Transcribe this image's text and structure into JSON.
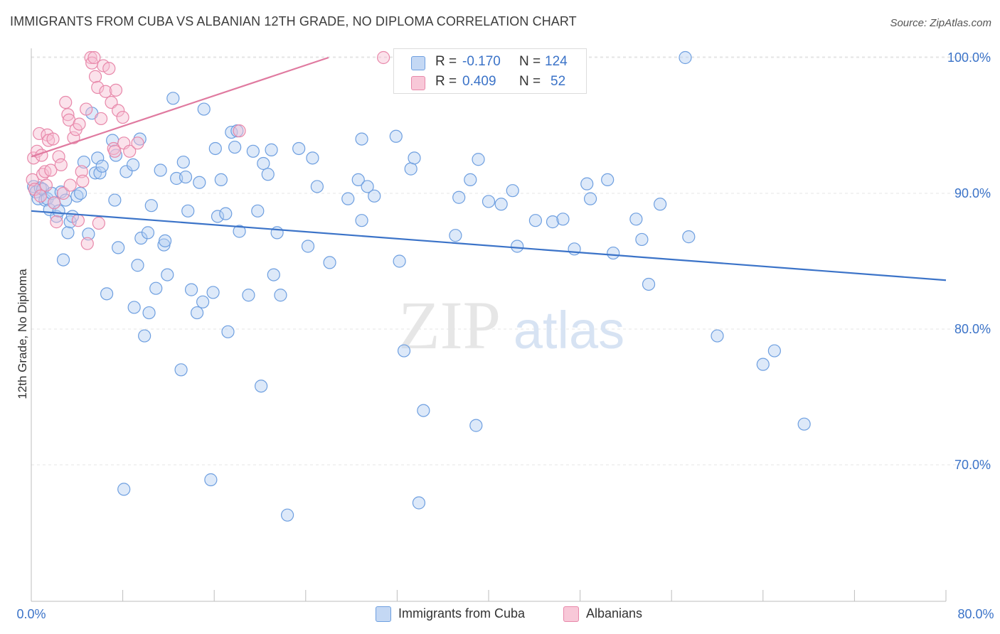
{
  "title": "IMMIGRANTS FROM CUBA VS ALBANIAN 12TH GRADE, NO DIPLOMA CORRELATION CHART",
  "source": "Source: ZipAtlas.com",
  "watermark": {
    "zip": "ZIP",
    "atlas": "atlas"
  },
  "legend": {
    "r_label": "R =",
    "n_label": "N =",
    "series": [
      {
        "name": "Immigrants from Cuba",
        "r": "-0.170",
        "n": "124",
        "color": "#6e9fe0",
        "fill": "#c4d8f4"
      },
      {
        "name": "Albanians",
        "r": "0.409",
        "n": "52",
        "color": "#e888aa",
        "fill": "#f8c8d8"
      }
    ]
  },
  "chart_data": {
    "type": "scatter",
    "ylabel": "12th Grade, No Diploma",
    "xlabel": "",
    "x_tick_labels": [
      "0.0%",
      "80.0%"
    ],
    "y_tick_labels": [
      "100.0%",
      "90.0%",
      "80.0%",
      "70.0%"
    ],
    "y_ticks": [
      100,
      90,
      80,
      70
    ],
    "xlim": [
      0,
      80
    ],
    "ylim": [
      62,
      101
    ],
    "grid": true,
    "series": [
      {
        "name": "Immigrants from Cuba",
        "color": "#3b73c8",
        "trend": {
          "x": [
            0,
            80
          ],
          "y": [
            88.7,
            83.6
          ]
        },
        "points": [
          [
            0.2,
            90.5
          ],
          [
            0.4,
            90.1
          ],
          [
            0.6,
            89.6
          ],
          [
            0.8,
            90.4
          ],
          [
            1.0,
            90.3
          ],
          [
            1.2,
            89.5
          ],
          [
            1.4,
            89.6
          ],
          [
            1.6,
            88.8
          ],
          [
            1.8,
            90.0
          ],
          [
            2.0,
            89.3
          ],
          [
            2.2,
            88.3
          ],
          [
            2.4,
            88.7
          ],
          [
            2.6,
            90.1
          ],
          [
            2.8,
            85.1
          ],
          [
            3.0,
            89.5
          ],
          [
            3.2,
            87.1
          ],
          [
            3.4,
            87.9
          ],
          [
            3.6,
            88.3
          ],
          [
            4.0,
            89.8
          ],
          [
            4.3,
            90.0
          ],
          [
            4.6,
            92.3
          ],
          [
            5.0,
            87.0
          ],
          [
            5.3,
            95.9
          ],
          [
            5.6,
            91.5
          ],
          [
            5.8,
            92.6
          ],
          [
            6.0,
            91.5
          ],
          [
            6.2,
            92.0
          ],
          [
            6.6,
            82.6
          ],
          [
            7.1,
            93.9
          ],
          [
            7.3,
            89.5
          ],
          [
            7.4,
            92.8
          ],
          [
            7.6,
            86.0
          ],
          [
            8.1,
            68.2
          ],
          [
            8.3,
            91.6
          ],
          [
            8.9,
            92.1
          ],
          [
            9.0,
            81.6
          ],
          [
            9.3,
            84.7
          ],
          [
            9.5,
            94.0
          ],
          [
            9.6,
            86.7
          ],
          [
            9.9,
            79.5
          ],
          [
            10.2,
            87.1
          ],
          [
            10.3,
            81.2
          ],
          [
            10.5,
            89.1
          ],
          [
            10.9,
            83.0
          ],
          [
            11.3,
            91.7
          ],
          [
            11.6,
            86.2
          ],
          [
            11.7,
            86.5
          ],
          [
            11.9,
            84.0
          ],
          [
            12.4,
            97.0
          ],
          [
            12.7,
            91.1
          ],
          [
            13.1,
            77.0
          ],
          [
            13.3,
            92.3
          ],
          [
            13.5,
            91.2
          ],
          [
            13.7,
            88.7
          ],
          [
            14.0,
            82.9
          ],
          [
            14.5,
            81.2
          ],
          [
            14.7,
            90.8
          ],
          [
            15.0,
            82.0
          ],
          [
            15.1,
            96.2
          ],
          [
            15.7,
            68.9
          ],
          [
            15.9,
            82.7
          ],
          [
            16.1,
            93.3
          ],
          [
            16.3,
            88.3
          ],
          [
            16.6,
            91.0
          ],
          [
            17.0,
            88.5
          ],
          [
            17.2,
            79.8
          ],
          [
            17.5,
            94.5
          ],
          [
            17.8,
            93.4
          ],
          [
            18.0,
            94.6
          ],
          [
            18.2,
            87.2
          ],
          [
            19.0,
            82.5
          ],
          [
            19.4,
            93.1
          ],
          [
            19.8,
            88.7
          ],
          [
            20.1,
            75.8
          ],
          [
            20.3,
            92.2
          ],
          [
            20.7,
            91.4
          ],
          [
            21.0,
            93.2
          ],
          [
            21.2,
            84.0
          ],
          [
            21.5,
            87.1
          ],
          [
            21.8,
            82.5
          ],
          [
            22.4,
            66.3
          ],
          [
            23.4,
            93.3
          ],
          [
            24.2,
            86.1
          ],
          [
            24.6,
            92.6
          ],
          [
            25.0,
            90.5
          ],
          [
            26.1,
            84.9
          ],
          [
            27.7,
            89.6
          ],
          [
            28.6,
            91.0
          ],
          [
            28.9,
            94.0
          ],
          [
            28.9,
            88.0
          ],
          [
            29.4,
            90.5
          ],
          [
            30.0,
            89.8
          ],
          [
            31.9,
            94.2
          ],
          [
            32.2,
            85.0
          ],
          [
            32.6,
            78.4
          ],
          [
            33.2,
            91.8
          ],
          [
            33.5,
            92.6
          ],
          [
            33.9,
            67.2
          ],
          [
            34.3,
            74.0
          ],
          [
            37.1,
            86.9
          ],
          [
            37.4,
            89.7
          ],
          [
            38.4,
            91.0
          ],
          [
            38.9,
            72.9
          ],
          [
            39.1,
            92.5
          ],
          [
            40.0,
            89.4
          ],
          [
            41.1,
            89.2
          ],
          [
            42.1,
            90.2
          ],
          [
            42.5,
            86.1
          ],
          [
            44.1,
            88.0
          ],
          [
            45.6,
            87.9
          ],
          [
            46.5,
            88.1
          ],
          [
            47.5,
            85.9
          ],
          [
            48.6,
            90.7
          ],
          [
            48.9,
            89.6
          ],
          [
            50.4,
            91.0
          ],
          [
            50.9,
            85.6
          ],
          [
            52.9,
            88.1
          ],
          [
            53.4,
            86.6
          ],
          [
            54.0,
            83.3
          ],
          [
            55.0,
            89.2
          ],
          [
            57.2,
            100.0
          ],
          [
            57.5,
            86.8
          ],
          [
            60.0,
            79.5
          ],
          [
            64.0,
            77.4
          ],
          [
            65.0,
            78.4
          ],
          [
            67.6,
            73.0
          ]
        ]
      },
      {
        "name": "Albanians",
        "color": "#e07aa0",
        "trend": {
          "x": [
            0,
            26
          ],
          "y": [
            92.7,
            100.0
          ]
        },
        "points": [
          [
            0.1,
            91.0
          ],
          [
            0.2,
            92.6
          ],
          [
            0.3,
            90.3
          ],
          [
            0.5,
            93.1
          ],
          [
            0.7,
            94.4
          ],
          [
            0.8,
            89.8
          ],
          [
            0.9,
            92.8
          ],
          [
            1.0,
            91.4
          ],
          [
            1.2,
            91.6
          ],
          [
            1.3,
            90.6
          ],
          [
            1.4,
            94.3
          ],
          [
            1.5,
            93.9
          ],
          [
            1.7,
            91.7
          ],
          [
            1.9,
            94.0
          ],
          [
            2.0,
            89.3
          ],
          [
            2.2,
            87.9
          ],
          [
            2.4,
            92.7
          ],
          [
            2.6,
            92.1
          ],
          [
            2.8,
            90.0
          ],
          [
            3.0,
            96.7
          ],
          [
            3.2,
            95.8
          ],
          [
            3.3,
            95.4
          ],
          [
            3.4,
            90.6
          ],
          [
            3.7,
            94.1
          ],
          [
            3.9,
            94.7
          ],
          [
            4.1,
            88.0
          ],
          [
            4.2,
            95.1
          ],
          [
            4.4,
            91.6
          ],
          [
            4.5,
            90.9
          ],
          [
            4.8,
            96.2
          ],
          [
            4.9,
            86.3
          ],
          [
            5.2,
            100.0
          ],
          [
            5.3,
            99.6
          ],
          [
            5.5,
            100.0
          ],
          [
            5.6,
            98.6
          ],
          [
            5.8,
            97.8
          ],
          [
            5.9,
            87.8
          ],
          [
            6.1,
            95.5
          ],
          [
            6.3,
            99.4
          ],
          [
            6.5,
            97.5
          ],
          [
            6.8,
            99.2
          ],
          [
            7.0,
            96.7
          ],
          [
            7.2,
            93.3
          ],
          [
            7.3,
            93.1
          ],
          [
            7.4,
            97.6
          ],
          [
            7.6,
            96.1
          ],
          [
            8.0,
            95.6
          ],
          [
            8.1,
            93.7
          ],
          [
            8.6,
            93.1
          ],
          [
            9.3,
            93.7
          ],
          [
            18.2,
            94.6
          ],
          [
            30.8,
            100.0
          ]
        ]
      }
    ]
  }
}
